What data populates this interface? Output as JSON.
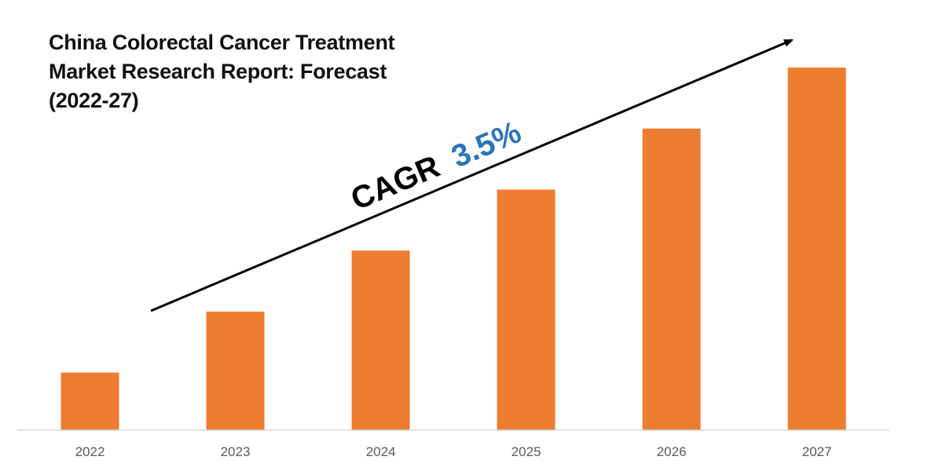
{
  "chart_data": {
    "type": "bar",
    "title_lines": [
      "China Colorectal Cancer Treatment",
      "Market Research Report: Forecast",
      "(2022-27)"
    ],
    "categories": [
      "2022",
      "2023",
      "2024",
      "2025",
      "2026",
      "2027"
    ],
    "values": [
      17,
      35,
      53,
      71,
      89,
      107
    ],
    "xlabel": "",
    "ylabel": "",
    "ylim": [
      0,
      120
    ],
    "grid": false,
    "legend": "none",
    "value_axis_shown": false,
    "annotation": {
      "label": "CAGR",
      "value": "3.5%",
      "arrow": "upward trend arrow"
    },
    "colors": {
      "bar": "#ED7D31",
      "annotation_value": "#2E75B6",
      "annotation_label": "#000000",
      "axis": "#D9D9D9",
      "tick_label": "#595959"
    }
  }
}
